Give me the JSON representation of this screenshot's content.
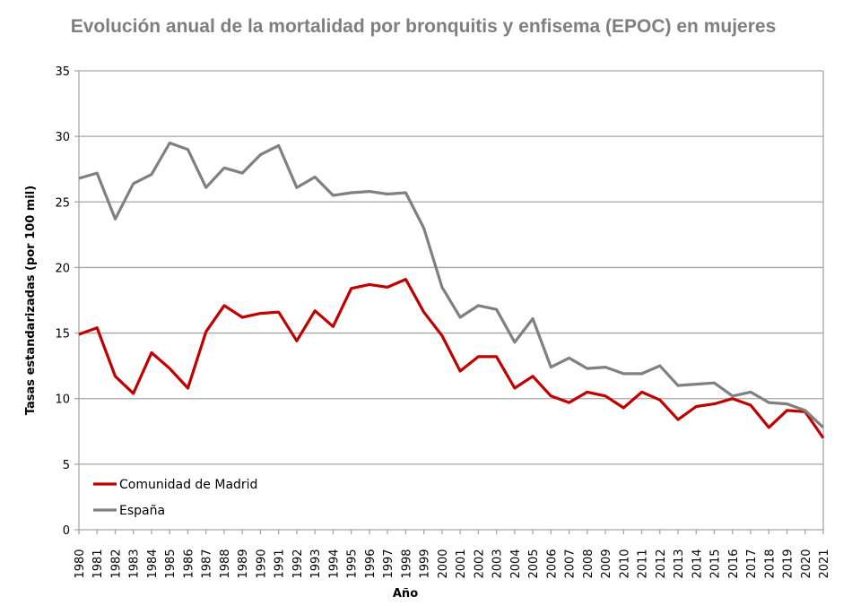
{
  "chart_data": {
    "type": "line",
    "title": "Evolución anual de la mortalidad por bronquitis y enfisema (EPOC) en mujeres",
    "xlabel": "Año",
    "ylabel": "Tasas estandarizadas (por 100 mil)",
    "ylim": [
      0,
      35
    ],
    "yticks": [
      0,
      5,
      10,
      15,
      20,
      25,
      30,
      35
    ],
    "grid": true,
    "legend_position": "bottom-left",
    "x": [
      1980,
      1981,
      1982,
      1983,
      1984,
      1985,
      1986,
      1987,
      1988,
      1989,
      1990,
      1991,
      1992,
      1993,
      1994,
      1995,
      1996,
      1997,
      1998,
      1999,
      2000,
      2001,
      2002,
      2003,
      2004,
      2005,
      2006,
      2007,
      2008,
      2009,
      2010,
      2011,
      2012,
      2013,
      2014,
      2015,
      2016,
      2017,
      2018,
      2019,
      2020,
      2021
    ],
    "series": [
      {
        "name": "Comunidad de Madrid",
        "color": "#c00000",
        "values": [
          14.9,
          15.4,
          11.7,
          10.4,
          13.5,
          12.3,
          10.8,
          15.1,
          17.1,
          16.2,
          16.5,
          16.6,
          14.4,
          16.7,
          15.5,
          18.4,
          18.7,
          18.5,
          19.1,
          16.6,
          14.8,
          12.1,
          13.2,
          13.2,
          10.8,
          11.7,
          10.2,
          9.7,
          10.5,
          10.2,
          9.3,
          10.5,
          9.9,
          8.4,
          9.4,
          9.6,
          10.0,
          9.5,
          7.8,
          9.1,
          9.0,
          7.0
        ]
      },
      {
        "name": "España",
        "color": "#808080",
        "values": [
          26.8,
          27.2,
          23.7,
          26.4,
          27.1,
          29.5,
          29.0,
          26.1,
          27.6,
          27.2,
          28.6,
          29.3,
          26.1,
          26.9,
          25.5,
          25.7,
          25.8,
          25.6,
          25.7,
          23.0,
          18.5,
          16.2,
          17.1,
          16.8,
          14.3,
          16.1,
          12.4,
          13.1,
          12.3,
          12.4,
          11.9,
          11.9,
          12.5,
          11.0,
          11.1,
          11.2,
          10.2,
          10.5,
          9.7,
          9.6,
          9.1,
          7.8
        ]
      }
    ]
  }
}
